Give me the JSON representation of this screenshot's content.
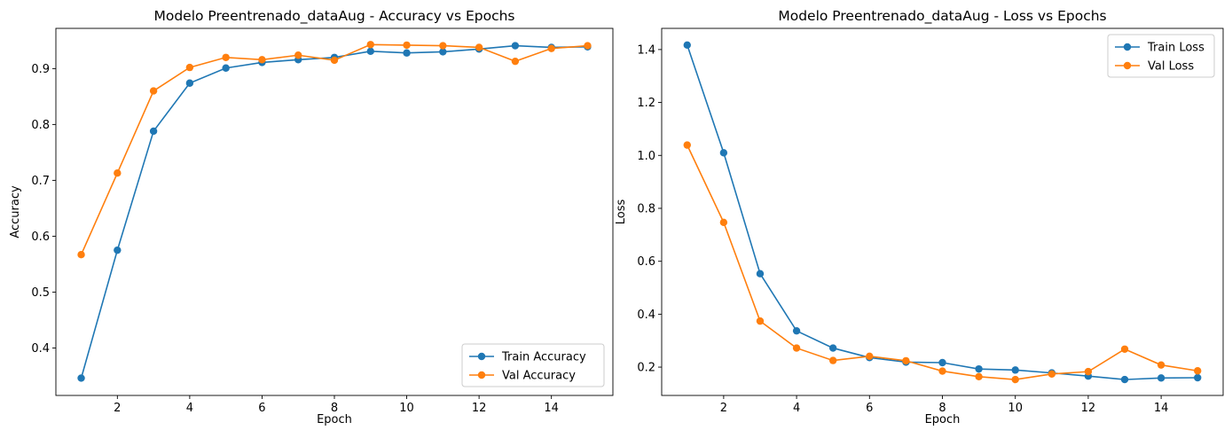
{
  "colors": {
    "train": "#1f77b4",
    "val": "#ff7f0e"
  },
  "chart_data": [
    {
      "type": "line",
      "title": "Modelo Preentrenado_dataAug - Accuracy vs Epochs",
      "xlabel": "Epoch",
      "ylabel": "Accuracy",
      "xlim": [
        0.3,
        15.7
      ],
      "ylim": [
        0.315,
        0.972
      ],
      "xticks": [
        2,
        4,
        6,
        8,
        10,
        12,
        14
      ],
      "yticks": [
        0.4,
        0.5,
        0.6,
        0.7,
        0.8,
        0.9
      ],
      "ytick_labels": [
        "0.4",
        "0.5",
        "0.6",
        "0.7",
        "0.8",
        "0.9"
      ],
      "grid": false,
      "legend_position": "lower-right",
      "x": [
        1,
        2,
        3,
        4,
        5,
        6,
        7,
        8,
        9,
        10,
        11,
        12,
        13,
        14,
        15
      ],
      "series": [
        {
          "name": "Train Accuracy",
          "color_key": "train",
          "values": [
            0.346,
            0.575,
            0.788,
            0.874,
            0.901,
            0.911,
            0.916,
            0.92,
            0.931,
            0.928,
            0.93,
            0.935,
            0.941,
            0.938,
            0.939
          ]
        },
        {
          "name": "Val Accuracy",
          "color_key": "val",
          "values": [
            0.567,
            0.713,
            0.86,
            0.902,
            0.92,
            0.916,
            0.924,
            0.915,
            0.943,
            0.942,
            0.941,
            0.938,
            0.913,
            0.936,
            0.941
          ]
        }
      ]
    },
    {
      "type": "line",
      "title": "Modelo Preentrenado_dataAug - Loss vs Epochs",
      "xlabel": "Epoch",
      "ylabel": "Loss",
      "xlim": [
        0.3,
        15.7
      ],
      "ylim": [
        0.093,
        1.48
      ],
      "xticks": [
        2,
        4,
        6,
        8,
        10,
        12,
        14
      ],
      "yticks": [
        0.2,
        0.4,
        0.6,
        0.8,
        1.0,
        1.2,
        1.4
      ],
      "ytick_labels": [
        "0.2",
        "0.4",
        "0.6",
        "0.8",
        "1.0",
        "1.2",
        "1.4"
      ],
      "grid": false,
      "legend_position": "upper-right",
      "x": [
        1,
        2,
        3,
        4,
        5,
        6,
        7,
        8,
        9,
        10,
        11,
        12,
        13,
        14,
        15
      ],
      "series": [
        {
          "name": "Train Loss",
          "color_key": "train",
          "values": [
            1.417,
            1.01,
            0.553,
            0.337,
            0.272,
            0.236,
            0.219,
            0.217,
            0.193,
            0.189,
            0.178,
            0.166,
            0.153,
            0.159,
            0.16
          ]
        },
        {
          "name": "Val Loss",
          "color_key": "val",
          "values": [
            1.039,
            0.747,
            0.374,
            0.272,
            0.225,
            0.241,
            0.224,
            0.185,
            0.164,
            0.153,
            0.174,
            0.183,
            0.268,
            0.208,
            0.186
          ]
        }
      ]
    }
  ]
}
